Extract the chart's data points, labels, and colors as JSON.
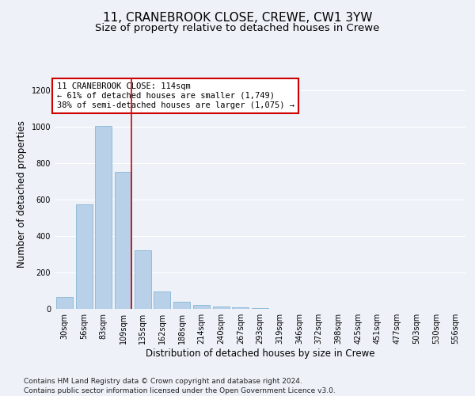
{
  "title_line1": "11, CRANEBROOK CLOSE, CREWE, CW1 3YW",
  "title_line2": "Size of property relative to detached houses in Crewe",
  "xlabel": "Distribution of detached houses by size in Crewe",
  "ylabel": "Number of detached properties",
  "categories": [
    "30sqm",
    "56sqm",
    "83sqm",
    "109sqm",
    "135sqm",
    "162sqm",
    "188sqm",
    "214sqm",
    "240sqm",
    "267sqm",
    "293sqm",
    "319sqm",
    "346sqm",
    "372sqm",
    "398sqm",
    "425sqm",
    "451sqm",
    "477sqm",
    "503sqm",
    "530sqm",
    "556sqm"
  ],
  "values": [
    65,
    575,
    1005,
    750,
    320,
    95,
    40,
    22,
    12,
    8,
    5,
    0,
    0,
    0,
    0,
    0,
    0,
    0,
    0,
    0,
    0
  ],
  "bar_color": "#b8d0e8",
  "bar_edge_color": "#7aaed0",
  "marker_index": 3,
  "marker_color": "#cc0000",
  "annotation_title": "11 CRANEBROOK CLOSE: 114sqm",
  "annotation_line2": "← 61% of detached houses are smaller (1,749)",
  "annotation_line3": "38% of semi-detached houses are larger (1,075) →",
  "annotation_box_color": "#cc0000",
  "annotation_bg": "#ffffff",
  "ylim": [
    0,
    1260
  ],
  "yticks": [
    0,
    200,
    400,
    600,
    800,
    1000,
    1200
  ],
  "footer_line1": "Contains HM Land Registry data © Crown copyright and database right 2024.",
  "footer_line2": "Contains public sector information licensed under the Open Government Licence v3.0.",
  "background_color": "#eef2f8",
  "plot_bg_color": "#eef2f8",
  "grid_color": "#ffffff",
  "title_fontsize": 11,
  "subtitle_fontsize": 9.5,
  "axis_label_fontsize": 8.5,
  "tick_fontsize": 7,
  "annotation_fontsize": 7.5,
  "footer_fontsize": 6.5
}
